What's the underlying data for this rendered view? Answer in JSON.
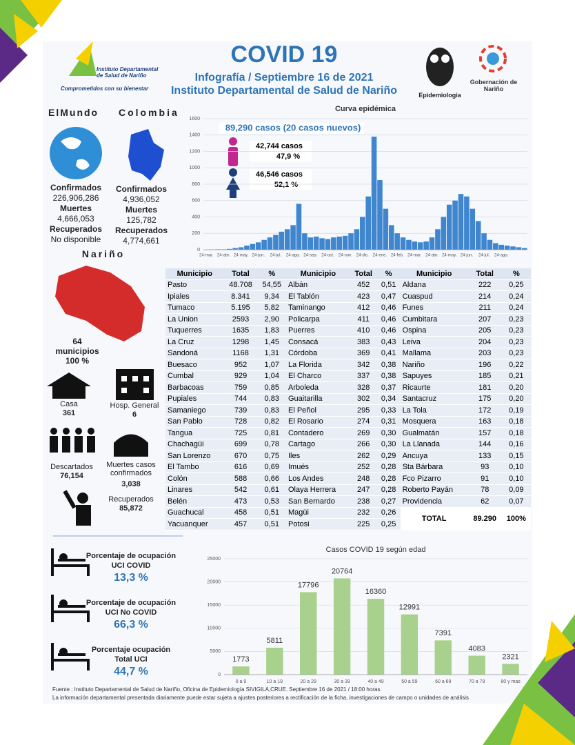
{
  "header": {
    "title": "COVID 19",
    "subtitle": "Infografía / Septiembre 16 de 2021",
    "institute": "Instituto Departamental de Salud de Nariño",
    "logo_name": "Instituto Departamental de Salud de Nariño",
    "logo_slogan": "Comprometidos con su bienestar",
    "epi_logo": "Epidemiologia",
    "gob_logo": "Gobernación de Nariño"
  },
  "world": {
    "title": "ElMundo",
    "items": [
      {
        "label": "Confirmados",
        "value": "226,906,286"
      },
      {
        "label": "Muertes",
        "value": "4,666,053"
      },
      {
        "label": "Recuperados",
        "value": "No disponible"
      }
    ]
  },
  "colombia": {
    "title": "Colombia",
    "items": [
      {
        "label": "Confirmados",
        "value": "4,936,052"
      },
      {
        "label": "Muertes",
        "value": "125,782"
      },
      {
        "label": "Recuperados",
        "value": "4,774,661"
      }
    ]
  },
  "narino": {
    "title": "Nariño",
    "count": "64",
    "count_label": "municipios",
    "pct": "100 %"
  },
  "stats": [
    {
      "label": "Casa",
      "value": "361"
    },
    {
      "label": "Hosp. General",
      "value": "6"
    },
    {
      "label": "Descartados",
      "value": "76,154"
    },
    {
      "label": "Muertes casos confirmados",
      "value": "3,038"
    },
    {
      "label": "Recuperados",
      "value": "85,872"
    }
  ],
  "table": {
    "headers": [
      "Municipio",
      "Total",
      "%",
      "Municipio",
      "Total",
      "%",
      "Municipio",
      "Total",
      "%"
    ],
    "rows": [
      [
        "Pasto",
        "48.708",
        "54,55",
        "Albán",
        "452",
        "0,51",
        "Aldana",
        "222",
        "0,25"
      ],
      [
        "Ipiales",
        "8.341",
        "9,34",
        "El Tablón",
        "423",
        "0,47",
        "Cuaspud",
        "214",
        "0,24"
      ],
      [
        "Tumaco",
        "5.195",
        "5,82",
        "Taminango",
        "412",
        "0,46",
        "Funes",
        "211",
        "0,24"
      ],
      [
        "La Union",
        "2593",
        "2,90",
        "Policarpa",
        "411",
        "0,46",
        "Cumbitara",
        "207",
        "0,23"
      ],
      [
        "Tuquerres",
        "1635",
        "1,83",
        "Puerres",
        "410",
        "0,46",
        "Ospina",
        "205",
        "0,23"
      ],
      [
        "La Cruz",
        "1298",
        "1,45",
        "Consacá",
        "383",
        "0,43",
        "Leiva",
        "204",
        "0,23"
      ],
      [
        "Sandoná",
        "1168",
        "1,31",
        "Córdoba",
        "369",
        "0,41",
        "Mallama",
        "203",
        "0,23"
      ],
      [
        "Buesaco",
        "952",
        "1,07",
        "La Florida",
        "342",
        "0,38",
        "Nariño",
        "196",
        "0,22"
      ],
      [
        "Cumbal",
        "929",
        "1,04",
        "El Charco",
        "337",
        "0,38",
        "Sapuyes",
        "185",
        "0,21"
      ],
      [
        "Barbacoas",
        "759",
        "0,85",
        "Arboleda",
        "328",
        "0,37",
        "Ricaurte",
        "181",
        "0,20"
      ],
      [
        "Pupiales",
        "744",
        "0,83",
        "Guaitarilla",
        "302",
        "0,34",
        "Santacruz",
        "175",
        "0,20"
      ],
      [
        "Samaniego",
        "739",
        "0,83",
        "El Peñol",
        "295",
        "0,33",
        "La Tola",
        "172",
        "0,19"
      ],
      [
        "San Pablo",
        "728",
        "0,82",
        "El Rosario",
        "274",
        "0,31",
        "Mosquera",
        "163",
        "0,18"
      ],
      [
        "Tangua",
        "725",
        "0,81",
        "Contadero",
        "269",
        "0,30",
        "Gualmatán",
        "157",
        "0,18"
      ],
      [
        "Chachagüi",
        "699",
        "0,78",
        "Cartago",
        "266",
        "0,30",
        "La Llanada",
        "144",
        "0,16"
      ],
      [
        "San Lorenzo",
        "670",
        "0,75",
        "Iles",
        "262",
        "0,29",
        "Ancuya",
        "133",
        "0,15"
      ],
      [
        "El Tambo",
        "616",
        "0,69",
        "Imués",
        "252",
        "0,28",
        "Sta Bárbara",
        "93",
        "0,10"
      ],
      [
        "Colón",
        "588",
        "0,66",
        "Los Andes",
        "248",
        "0,28",
        "Fco Pizarro",
        "91",
        "0,10"
      ],
      [
        "Linares",
        "542",
        "0,61",
        "Olaya Herrera",
        "247",
        "0,28",
        "Roberto Payán",
        "78",
        "0,09"
      ],
      [
        "Belén",
        "473",
        "0,53",
        "San Bernardo",
        "238",
        "0,27",
        "Providencia",
        "62",
        "0,07"
      ],
      [
        "Guachucal",
        "458",
        "0,51",
        "Magüi",
        "232",
        "0,26"
      ],
      [
        "Yacuanquer",
        "457",
        "0,51",
        "Potosi",
        "225",
        "0,25"
      ]
    ],
    "total": [
      "TOTAL",
      "89.290",
      "100%"
    ]
  },
  "occupancy": [
    {
      "label": "Porcentaje de ocupación",
      "sub": "UCI COVID",
      "value": "13,3  %"
    },
    {
      "label": "Porcentaje de ocupación",
      "sub": "UCI No COVID",
      "value": "66,3  %"
    },
    {
      "label": "Porcentaje ocupación",
      "sub": "Total UCI",
      "value": "44,7  %"
    }
  ],
  "chart_data": [
    {
      "type": "bar",
      "title": "Curva epidémica",
      "subtitle": "89,290 casos (20 casos nuevos)",
      "annotations": [
        "42,744  casos",
        "47,9 %",
        "46,546  casos",
        "52,1 %"
      ],
      "color": "#3f86cf",
      "categories": [
        "24-mar.",
        null,
        null,
        "24-abr.",
        null,
        null,
        "24-may.",
        null,
        null,
        "24-jun.",
        null,
        null,
        "24-jul.",
        null,
        null,
        "24-ago.",
        null,
        null,
        "24-sep.",
        null,
        null,
        "24-oct.",
        null,
        null,
        "24-nov.",
        null,
        null,
        "24-dic.",
        null,
        null,
        "24-ene.",
        null,
        null,
        "24-feb.",
        null,
        null,
        "24-mar.",
        null,
        null,
        "24-abr.",
        null,
        null,
        "24-may.",
        null,
        null,
        "24-jun.",
        null,
        null,
        "24-jul.",
        null,
        null,
        "24-ago.",
        null,
        null,
        null,
        null
      ],
      "values": [
        0,
        2,
        5,
        5,
        10,
        20,
        30,
        50,
        70,
        90,
        120,
        150,
        180,
        220,
        250,
        300,
        560,
        200,
        150,
        160,
        140,
        130,
        150,
        160,
        170,
        200,
        250,
        400,
        650,
        1380,
        850,
        500,
        300,
        200,
        150,
        120,
        100,
        90,
        100,
        150,
        250,
        400,
        550,
        600,
        680,
        650,
        500,
        350,
        200,
        120,
        80,
        60,
        50,
        40,
        30,
        20
      ],
      "ylim": [
        0,
        1600
      ],
      "yticks": [
        0,
        200,
        400,
        600,
        800,
        1000,
        1200,
        1400,
        1600
      ],
      "grid": true
    },
    {
      "type": "bar",
      "title": "Casos COVID 19  según edad",
      "color": "#a9d18e",
      "categories": [
        "0 a 9",
        "10 a 19",
        "20 a 29",
        "30 a 39",
        "40 a 49",
        "50 a 59",
        "60 a 69",
        "70 a 79",
        "80 y mas"
      ],
      "values": [
        1773,
        5811,
        17796,
        20764,
        16360,
        12991,
        7391,
        4083,
        2321
      ],
      "ylim": [
        0,
        25000
      ],
      "yticks": [
        0,
        5000,
        10000,
        15000,
        20000,
        25000
      ],
      "grid": true,
      "value_labels_shown": true
    }
  ],
  "footer": [
    "Fuente : Instituto Departamental de Salud de Nariño, Oficina de Epidemiología SIVIGILA,CRUE.  Septiembre 16 de 2021 / 18:00  horas.",
    "La información departamental presentada diariamente puede estar sujeta a ajustes posteriores a  rectificación de la ficha, investigaciones de campo o unidades de análisis"
  ]
}
